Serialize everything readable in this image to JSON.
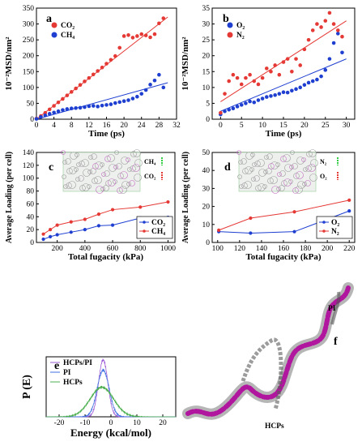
{
  "chart_data": [
    {
      "panel": "a",
      "type": "scatter",
      "xlabel": "Time (ps)",
      "ylabel": "10⁻²MSD/nm²",
      "xlim": [
        0,
        32
      ],
      "ylim": [
        0,
        350
      ],
      "xticks": [
        "0",
        "4",
        "8",
        "12",
        "16",
        "20",
        "24",
        "28",
        "32"
      ],
      "yticks": [
        "0",
        "50",
        "100",
        "150",
        "200",
        "250",
        "300",
        "350"
      ],
      "legend": "top-left",
      "series": [
        {
          "name": "CO₂",
          "color": "#e53935",
          "x": [
            0,
            1,
            2,
            3,
            4,
            5,
            6,
            7,
            8,
            9,
            10,
            11,
            12,
            13,
            14,
            15,
            16,
            17,
            18,
            19,
            20,
            21,
            22,
            23,
            24,
            25,
            26,
            27,
            28,
            29
          ],
          "y": [
            2,
            10,
            20,
            31,
            42,
            53,
            64,
            75,
            86,
            97,
            108,
            119,
            130,
            141,
            152,
            163,
            175,
            187,
            199,
            225,
            262,
            265,
            257,
            262,
            268,
            264,
            258,
            268,
            302,
            318
          ],
          "fit": [
            [
              0,
              0
            ],
            [
              30,
              322
            ]
          ]
        },
        {
          "name": "CH₄",
          "color": "#1e3fd0",
          "x": [
            0,
            1,
            2,
            3,
            4,
            5,
            6,
            7,
            8,
            9,
            10,
            11,
            12,
            13,
            14,
            15,
            16,
            17,
            18,
            19,
            20,
            21,
            22,
            23,
            24,
            25,
            26,
            27,
            28,
            29
          ],
          "y": [
            1,
            7,
            12,
            17,
            21,
            25,
            29,
            32,
            34,
            35,
            36,
            38,
            41,
            42,
            40,
            43,
            45,
            47,
            51,
            54,
            57,
            60,
            65,
            71,
            80,
            92,
            109,
            122,
            140,
            100
          ],
          "fit": [
            [
              0,
              0
            ],
            [
              30,
              115
            ]
          ]
        }
      ]
    },
    {
      "panel": "b",
      "type": "scatter",
      "xlabel": "Time (ps)",
      "ylabel": "10⁻²MSD/nm²",
      "xlim": [
        -2,
        32
      ],
      "ylim": [
        0,
        35
      ],
      "xticks": [
        "0",
        "5",
        "10",
        "15",
        "20",
        "25",
        "30"
      ],
      "yticks": [
        "0",
        "5",
        "10",
        "15",
        "20",
        "25",
        "30",
        "35"
      ],
      "legend": "top-left",
      "series": [
        {
          "name": "O₂",
          "color": "#1e3fd0",
          "x": [
            0,
            1,
            2,
            3,
            4,
            5,
            6,
            7,
            8,
            9,
            10,
            11,
            12,
            13,
            14,
            15,
            16,
            17,
            18,
            19,
            20,
            21,
            22,
            23,
            24,
            25,
            26,
            27,
            28,
            29
          ],
          "y": [
            1.5,
            2.5,
            3,
            3.4,
            4,
            4.5,
            5,
            5.6,
            5.3,
            6,
            6.5,
            7,
            7.3,
            7.6,
            8,
            8.5,
            8.4,
            9,
            9.5,
            10,
            10.8,
            11.5,
            12,
            12.5,
            13.5,
            15.5,
            19,
            24,
            27,
            21
          ],
          "fit": [
            [
              0,
              2.5
            ],
            [
              30,
              19
            ]
          ]
        },
        {
          "name": "N₂",
          "color": "#e53935",
          "x": [
            0,
            1,
            2,
            3,
            4,
            5,
            6,
            7,
            8,
            9,
            10,
            11,
            12,
            13,
            14,
            15,
            16,
            17,
            18,
            19,
            20,
            21,
            22,
            23,
            24,
            25,
            26,
            27,
            28,
            29
          ],
          "y": [
            2,
            8,
            12,
            14,
            13,
            11,
            13,
            14,
            12,
            11,
            13,
            16,
            15,
            17,
            14,
            18,
            19,
            15,
            19,
            17,
            22,
            25,
            28,
            30,
            29,
            31,
            33.5,
            30,
            28,
            26
          ],
          "fit": [
            [
              0,
              5.5
            ],
            [
              30,
              31
            ]
          ]
        }
      ]
    },
    {
      "panel": "c",
      "type": "line",
      "xlabel": "Total fugacity (kPa)",
      "ylabel": "Average Loading (per cell)",
      "xlim": [
        50,
        1050
      ],
      "ylim": [
        0,
        140
      ],
      "xticks": [
        "200",
        "400",
        "600",
        "800",
        "1000"
      ],
      "yticks": [
        "0",
        "20",
        "40",
        "60",
        "80",
        "100",
        "120",
        "140"
      ],
      "legend": "bottom-right",
      "inset_legend": [
        "CH₄",
        "CO₂"
      ],
      "series": [
        {
          "name": "CO₂",
          "color": "#1e3fd0",
          "x": [
            100,
            150,
            200,
            300,
            400,
            500,
            600,
            800,
            1000
          ],
          "y": [
            5,
            9,
            12,
            16,
            20,
            26,
            27,
            38,
            39
          ]
        },
        {
          "name": "CH₄",
          "color": "#e53935",
          "x": [
            100,
            150,
            200,
            300,
            400,
            500,
            600,
            800,
            1000
          ],
          "y": [
            13,
            20,
            27,
            32,
            36,
            44,
            51,
            55,
            63
          ]
        }
      ]
    },
    {
      "panel": "d",
      "type": "line",
      "xlabel": "Total fugacity (kPa)",
      "ylabel": "Average Loading (per cell)",
      "xlim": [
        95,
        225
      ],
      "ylim": [
        0,
        50
      ],
      "xticks": [
        "100",
        "120",
        "140",
        "160",
        "180",
        "200",
        "220"
      ],
      "yticks": [
        "0",
        "10",
        "20",
        "30",
        "40",
        "50"
      ],
      "legend": "bottom-right",
      "inset_legend": [
        "N₂",
        "O₂"
      ],
      "series": [
        {
          "name": "O₂",
          "color": "#1e3fd0",
          "x": [
            101,
            130,
            170,
            220
          ],
          "y": [
            6,
            5.2,
            6,
            17.5
          ]
        },
        {
          "name": "N₂",
          "color": "#e53935",
          "x": [
            101,
            130,
            170,
            220
          ],
          "y": [
            6.8,
            13.5,
            17,
            23.5
          ]
        }
      ]
    },
    {
      "panel": "e",
      "type": "line",
      "xlabel": "Energy (kcal/mol)",
      "ylabel": "P (E)",
      "xlim": [
        -25,
        25
      ],
      "xticks": [
        "-20",
        "-10",
        "0",
        "10",
        "20"
      ],
      "legend": "top-left",
      "series": [
        {
          "name": "HCPs/PI",
          "color": "#9b59d6",
          "center": -3,
          "width": 1.8,
          "peak": 1.0
        },
        {
          "name": "PI",
          "color": "#3f6fe0",
          "center": -3,
          "width": 2.3,
          "peak": 0.82
        },
        {
          "name": "HCPs",
          "color": "#4caf50",
          "center": -3.5,
          "width": 4.5,
          "peak": 0.52
        }
      ]
    }
  ],
  "panel_f": {
    "label": "f",
    "text_pi": "PI",
    "text_hcps": "HCPs"
  }
}
